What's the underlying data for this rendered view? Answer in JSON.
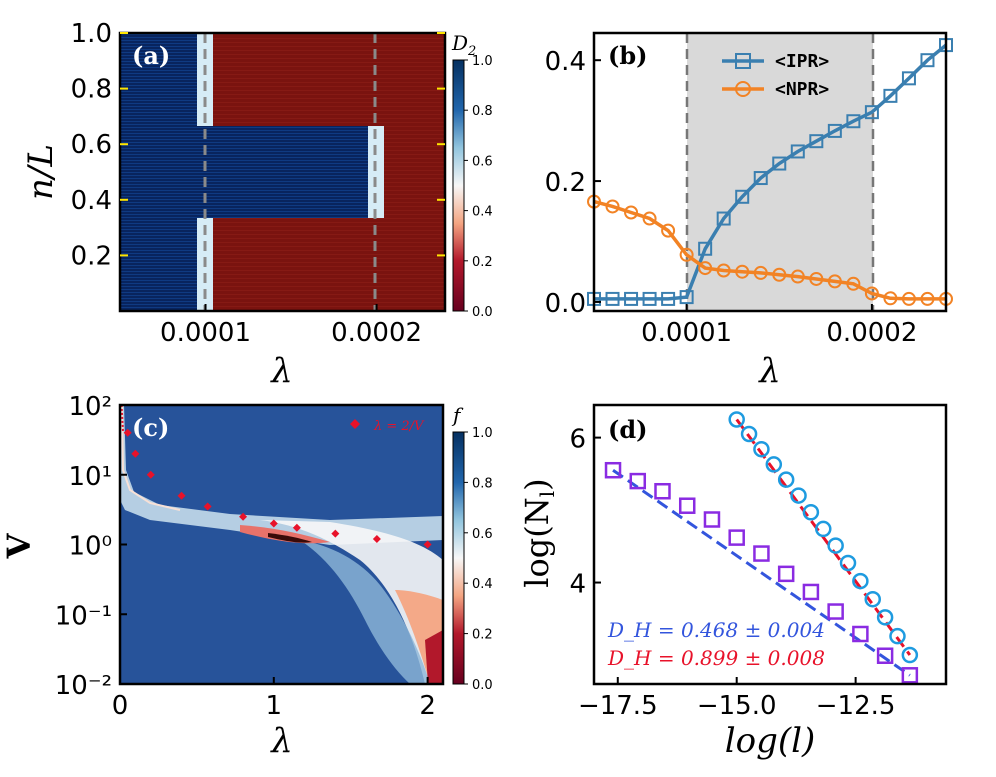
{
  "chart_data": [
    {
      "panel": "(a)",
      "type": "heatmap",
      "xlabel": "λ",
      "ylabel": "n/L",
      "x_ticks": [
        "0.0001",
        "0.0002"
      ],
      "y_ticks": [
        "0.2",
        "0.4",
        "0.6",
        "0.8",
        "1.0"
      ],
      "xlim": [
        5e-05,
        0.00024
      ],
      "ylim": [
        0.0,
        1.0
      ],
      "vlines": [
        0.0001,
        0.0002
      ],
      "regions": [
        {
          "x": [
            5e-05,
            0.0001
          ],
          "y": [
            0.0,
            1.0
          ],
          "value": 0.95
        },
        {
          "x": [
            0.0001,
            0.00024
          ],
          "y": [
            0.0,
            0.333
          ],
          "value": 0.05
        },
        {
          "x": [
            0.0001,
            0.0002
          ],
          "y": [
            0.333,
            0.667
          ],
          "value": 0.95
        },
        {
          "x": [
            0.0002,
            0.00024
          ],
          "y": [
            0.333,
            0.667
          ],
          "value": 0.05
        },
        {
          "x": [
            0.0001,
            0.00024
          ],
          "y": [
            0.667,
            1.0
          ],
          "value": 0.05
        }
      ],
      "colorbar": {
        "label": "D₂",
        "ticks": [
          "0.0",
          "0.2",
          "0.4",
          "0.6",
          "0.8",
          "1.0"
        ],
        "range": [
          0,
          1
        ]
      }
    },
    {
      "panel": "(b)",
      "type": "line",
      "xlabel": "λ",
      "x_ticks": [
        "0.0001",
        "0.0002"
      ],
      "y_ticks": [
        "0.0",
        "0.2",
        "0.4"
      ],
      "xlim": [
        5e-05,
        0.00024
      ],
      "ylim": [
        -0.015,
        0.445
      ],
      "shaded": [
        0.0001,
        0.0002
      ],
      "legend": "top-center",
      "series": [
        {
          "name": "<IPR>",
          "color": "#3a7fb0",
          "x": [
            5e-05,
            6e-05,
            7e-05,
            8e-05,
            9e-05,
            0.0001,
            0.00011,
            0.00012,
            0.00013,
            0.00014,
            0.00015,
            0.00016,
            0.00017,
            0.00018,
            0.00019,
            0.0002,
            0.00021,
            0.00022,
            0.00023,
            0.00024
          ],
          "values": [
            0.005,
            0.005,
            0.005,
            0.005,
            0.005,
            0.008,
            0.088,
            0.138,
            0.174,
            0.205,
            0.229,
            0.249,
            0.266,
            0.283,
            0.299,
            0.314,
            0.341,
            0.37,
            0.4,
            0.425
          ]
        },
        {
          "name": "<NPR>",
          "color": "#f28325",
          "x": [
            5e-05,
            6e-05,
            7e-05,
            8e-05,
            9e-05,
            0.0001,
            0.00011,
            0.00012,
            0.00013,
            0.00014,
            0.00015,
            0.00016,
            0.00017,
            0.00018,
            0.00019,
            0.0002,
            0.00021,
            0.00022,
            0.00023,
            0.00024
          ],
          "values": [
            0.166,
            0.158,
            0.148,
            0.138,
            0.118,
            0.078,
            0.056,
            0.052,
            0.05,
            0.048,
            0.045,
            0.042,
            0.038,
            0.034,
            0.03,
            0.014,
            0.006,
            0.005,
            0.005,
            0.005
          ]
        }
      ]
    },
    {
      "panel": "(c)",
      "type": "heatmap",
      "xlabel": "λ",
      "ylabel": "V",
      "x_ticks": [
        "0",
        "1",
        "2"
      ],
      "y_ticks": [
        "10⁻²",
        "10⁻¹",
        "10⁰",
        "10¹",
        "10²"
      ],
      "xlim": [
        0,
        2.1
      ],
      "ylim_log10": [
        -2,
        2
      ],
      "colorbar": {
        "label": "f",
        "ticks": [
          "0.0",
          "0.2",
          "0.4",
          "0.6",
          "0.8",
          "1.0"
        ],
        "range": [
          0,
          1
        ]
      },
      "legend": "top-right",
      "series": [
        {
          "name": "λ = 2/V",
          "color": "#e8122a",
          "x": [
            0.05,
            0.1,
            0.2,
            0.4,
            0.57,
            0.8,
            1.0,
            1.15,
            1.4,
            1.67,
            2.0
          ],
          "values": [
            40,
            20,
            10,
            5,
            3.5,
            2.5,
            2.0,
            1.74,
            1.43,
            1.2,
            1.0
          ]
        }
      ]
    },
    {
      "panel": "(d)",
      "type": "scatter",
      "xlabel": "log(l)",
      "ylabel": "log(N_l)",
      "x_ticks": [
        "−17.5",
        "−15.0",
        "−12.5"
      ],
      "y_ticks": [
        "4",
        "6"
      ],
      "xlim": [
        -18.0,
        -10.6
      ],
      "ylim": [
        2.6,
        6.45
      ],
      "annotations": [
        {
          "text": "D_H = 0.468 ± 0.004",
          "color": "#3355dd"
        },
        {
          "text": "D_H = 0.899 ± 0.008",
          "color": "#e8122a"
        }
      ],
      "series": [
        {
          "name": "squares",
          "color": "#8a2be2",
          "x": [
            -17.6,
            -17.08,
            -16.56,
            -16.04,
            -15.52,
            -15.0,
            -14.48,
            -13.96,
            -13.44,
            -12.92,
            -12.4,
            -11.88,
            -11.36
          ],
          "values": [
            5.55,
            5.4,
            5.26,
            5.06,
            4.87,
            4.62,
            4.4,
            4.12,
            3.87,
            3.6,
            3.29,
            2.99,
            2.72
          ]
        },
        {
          "name": "circles",
          "color": "#1e9be0",
          "x": [
            -15.0,
            -14.74,
            -14.48,
            -14.22,
            -13.96,
            -13.7,
            -13.44,
            -13.18,
            -12.92,
            -12.66,
            -12.4,
            -12.14,
            -11.88,
            -11.62,
            -11.36
          ],
          "values": [
            6.25,
            6.05,
            5.84,
            5.63,
            5.42,
            5.2,
            4.97,
            4.74,
            4.51,
            4.27,
            4.02,
            3.77,
            3.52,
            3.26,
            3.0
          ]
        }
      ]
    }
  ],
  "labels": {
    "a_panel": "(a)",
    "b_panel": "(b)",
    "c_panel": "(c)",
    "d_panel": "(d)",
    "a_xlabel": "λ",
    "b_xlabel": "λ",
    "c_xlabel": "λ",
    "d_xlabel": "log(l)",
    "a_ylabel": "n/L",
    "c_ylabel": "V",
    "d_ylabel": "log(N",
    "d_ylabel_sub": "l",
    "d_ylabel_end": ")",
    "cb_a_label": "D",
    "cb_a_sub": "2",
    "cb_c_label": "f",
    "legend_ipr": "<IPR>",
    "legend_npr": "<NPR>",
    "legend_c": "λ = 2/V",
    "ann_blue": "D_H = 0.468 ± 0.004",
    "ann_red": "D_H = 0.899 ± 0.008"
  },
  "colors": {
    "dark_blue": "#06205a",
    "dark_red": "#7a120e",
    "ipr": "#3a7fb0",
    "npr": "#f28325",
    "fit_blue": "#3355dd",
    "fit_red": "#e8122a",
    "square": "#8a2be2",
    "circle": "#1e9be0"
  }
}
